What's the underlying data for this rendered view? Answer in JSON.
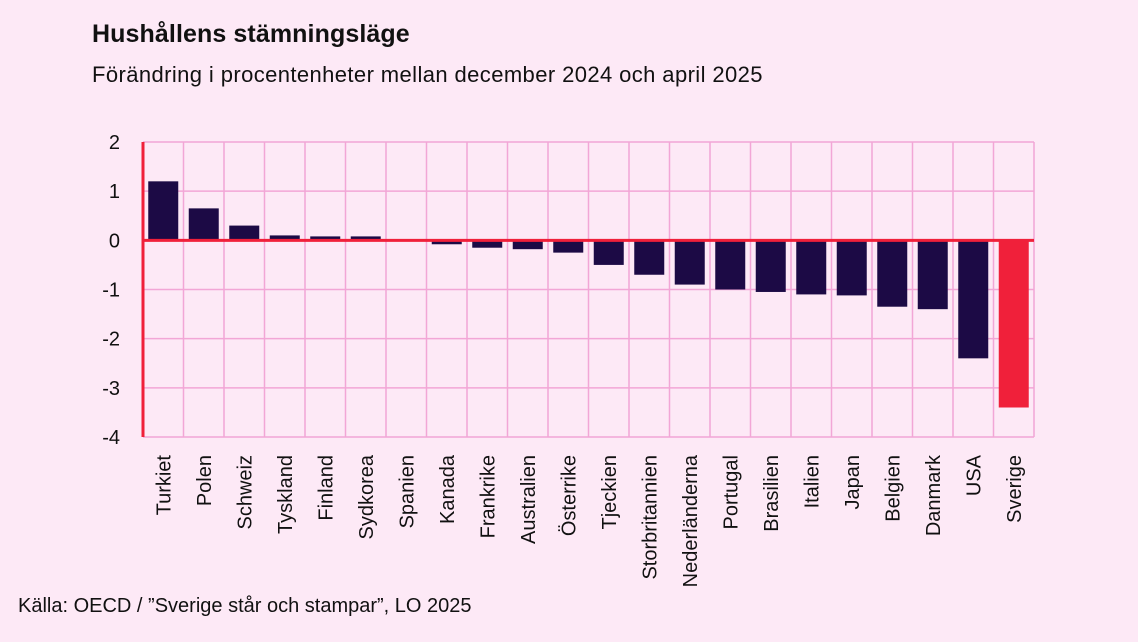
{
  "header": {
    "title": "Hushållens stämningsläge",
    "subtitle": "Förändring i procentenheter mellan december 2024 och april 2025"
  },
  "footer": {
    "source": "Källa: OECD / ”Sverige står och stampar”, LO 2025"
  },
  "colors": {
    "background": "#fde9f6",
    "bar": "#1c0a45",
    "highlight_bar": "#f0203a",
    "grid": "#f2a6d6",
    "axis": "#f0203a"
  },
  "chart_data": {
    "type": "bar",
    "title": "Hushållens stämningsläge",
    "subtitle": "Förändring i procentenheter mellan december 2024 och april 2025",
    "xlabel": "",
    "ylabel": "",
    "ylim": [
      -4,
      2
    ],
    "yticks": [
      2,
      1,
      0,
      -1,
      -2,
      -3,
      -4
    ],
    "ytick_labels": [
      "2",
      "1",
      "0",
      "-1",
      "-2",
      "-3",
      "-4"
    ],
    "grid": true,
    "highlight": "Sverige",
    "categories": [
      "Turkiet",
      "Polen",
      "Schweiz",
      "Tyskland",
      "Finland",
      "Sydkorea",
      "Spanien",
      "Kanada",
      "Frankrike",
      "Australien",
      "Österrike",
      "Tjeckien",
      "Storbritannien",
      "Nederländerna",
      "Portugal",
      "Brasilien",
      "Italien",
      "Japan",
      "Belgien",
      "Danmark",
      "USA",
      "Sverige"
    ],
    "values": [
      1.2,
      0.65,
      0.3,
      0.1,
      0.08,
      0.08,
      0.0,
      -0.08,
      -0.15,
      -0.18,
      -0.25,
      -0.5,
      -0.7,
      -0.9,
      -1.0,
      -1.05,
      -1.1,
      -1.12,
      -1.35,
      -1.4,
      -2.4,
      -3.4
    ]
  }
}
